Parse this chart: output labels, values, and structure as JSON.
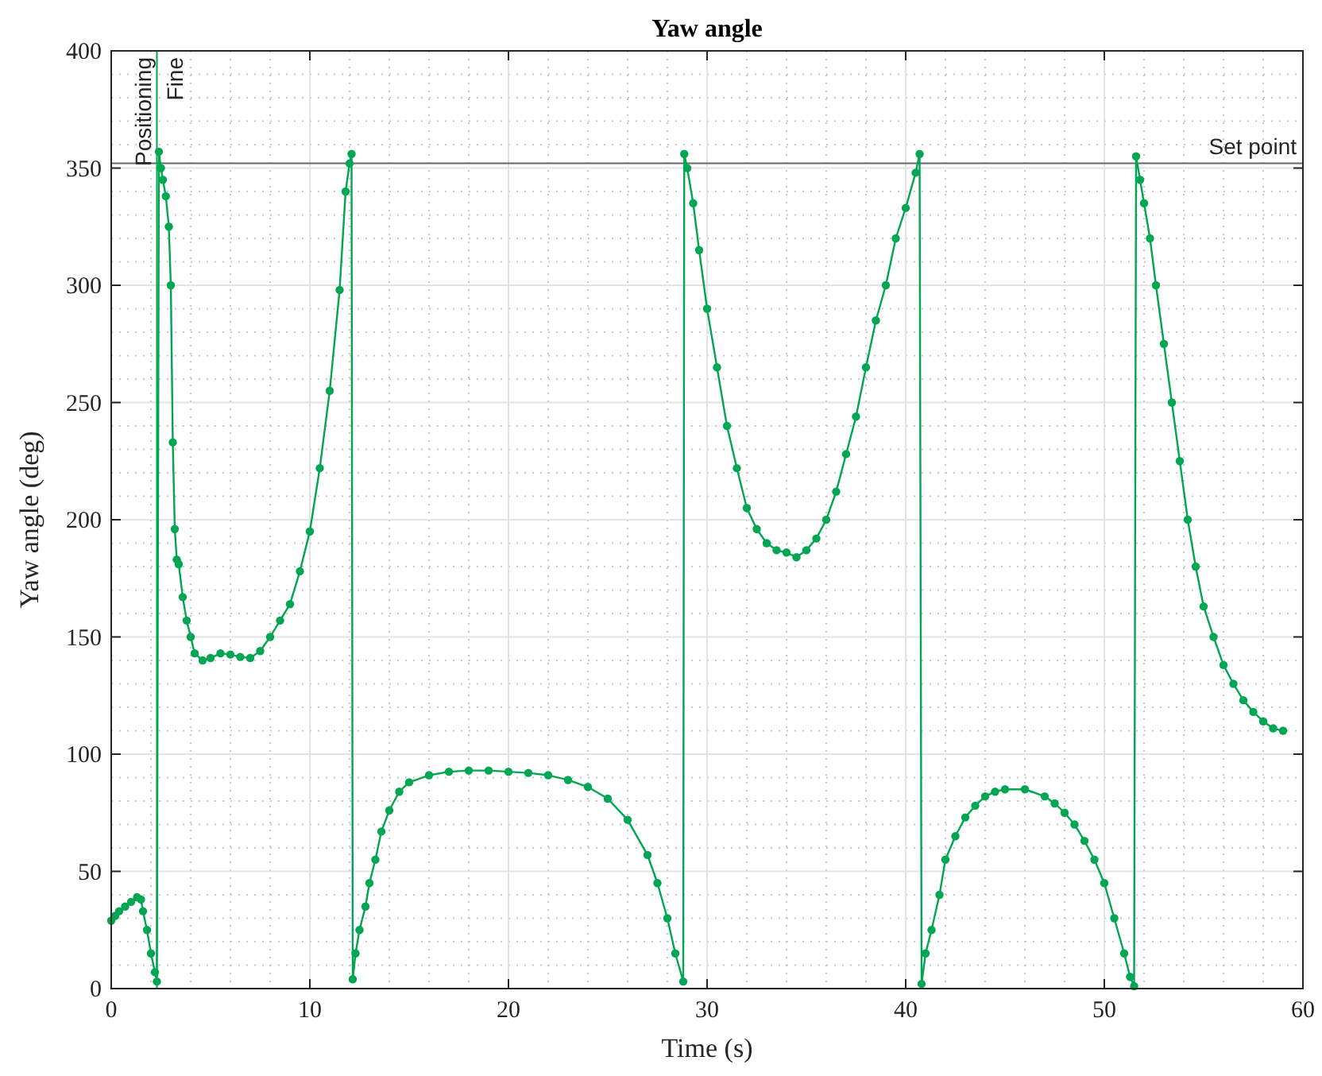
{
  "chart_data": {
    "type": "line",
    "title": "Yaw angle",
    "xlabel": "Time (s)",
    "ylabel": "Yaw angle (deg)",
    "xlim": [
      0,
      60
    ],
    "xticks": [
      0,
      10,
      20,
      30,
      40,
      50,
      60
    ],
    "ylim": [
      0,
      400
    ],
    "yticks": [
      0,
      50,
      100,
      150,
      200,
      250,
      300,
      350,
      400
    ],
    "grid": true,
    "marker": "circle",
    "line_style": "solid",
    "series": [
      {
        "color": "#00a651",
        "x": [
          0,
          0.2,
          0.4,
          0.7,
          1,
          1.3,
          1.5,
          1.6,
          1.8,
          2,
          2.2,
          2.3,
          2.4,
          2.5,
          2.6,
          2.75,
          2.9,
          3.0,
          3.1,
          3.2,
          3.3,
          3.4,
          3.6,
          3.8,
          4.0,
          4.2,
          4.6,
          5.0,
          5.5,
          6,
          6.5,
          7,
          7.5,
          8,
          8.5,
          9,
          9.5,
          10,
          10.5,
          11,
          11.5,
          11.8,
          12.0,
          12.1,
          12.16,
          12.3,
          12.5,
          12.8,
          13,
          13.3,
          13.6,
          14,
          14.5,
          15,
          16,
          17,
          18,
          19,
          20,
          21,
          22,
          23,
          24,
          25,
          26,
          27,
          27.5,
          28,
          28.4,
          28.8,
          28.85,
          29,
          29.3,
          29.6,
          30,
          30.5,
          31,
          31.5,
          32,
          32.5,
          33,
          33.5,
          34,
          34.5,
          35,
          35.5,
          36,
          36.5,
          37,
          37.5,
          38,
          38.5,
          39,
          39.5,
          40,
          40.5,
          40.7,
          40.8,
          41,
          41.3,
          41.7,
          42,
          42.5,
          43,
          43.5,
          44,
          44.5,
          45,
          46,
          47,
          47.5,
          48,
          48.5,
          49,
          49.5,
          50,
          50.5,
          51,
          51.3,
          51.5,
          51.6,
          51.8,
          52,
          52.3,
          52.6,
          53,
          53.4,
          53.8,
          54.2,
          54.6,
          55,
          55.5,
          56,
          56.5,
          57,
          57.5,
          58,
          58.5,
          59
        ],
        "values": [
          29,
          31,
          33,
          35,
          37,
          39,
          38,
          33,
          25,
          15,
          7,
          3,
          357,
          350,
          345,
          338,
          325,
          300,
          233,
          196,
          183,
          181,
          167,
          157,
          150,
          143,
          140,
          141,
          143,
          142.5,
          141.5,
          141,
          144,
          150,
          157,
          164,
          178,
          195,
          222,
          255,
          298,
          340,
          352,
          356,
          4,
          15,
          25,
          35,
          45,
          55,
          67,
          76,
          84,
          88,
          91,
          92.5,
          93,
          93,
          92.5,
          92,
          91,
          89,
          86,
          81,
          72,
          57,
          45,
          30,
          15,
          3,
          356,
          350,
          335,
          315,
          290,
          265,
          240,
          222,
          205,
          196,
          190,
          187,
          186,
          184,
          187,
          192,
          200,
          212,
          228,
          244,
          265,
          285,
          300,
          320,
          333,
          348,
          356,
          2,
          15,
          25,
          40,
          55,
          65,
          73,
          78,
          82,
          84,
          85,
          85,
          82,
          79,
          75,
          70,
          63,
          55,
          45,
          30,
          15,
          5,
          1,
          355,
          345,
          335,
          320,
          300,
          275,
          250,
          225,
          200,
          180,
          163,
          150,
          138,
          130,
          123,
          118,
          114,
          111,
          110
        ]
      }
    ],
    "ref_lines": [
      {
        "axis": "y",
        "value": 352,
        "label": "Set point",
        "color": "#666666"
      },
      {
        "axis": "x",
        "value": 2.3,
        "label": "Positioning",
        "color": "#00a651"
      }
    ],
    "annotations": [
      {
        "text": "Fine",
        "x": 2.3,
        "y": 400
      }
    ]
  }
}
